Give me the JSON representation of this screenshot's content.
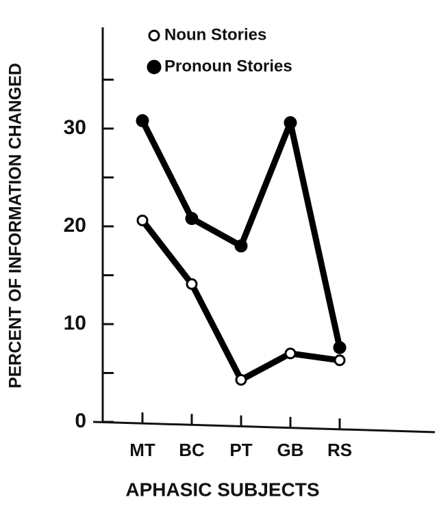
{
  "chart_data": {
    "type": "line",
    "xlabel": "APHASIC SUBJECTS",
    "ylabel": "PERCENT OF INFORMATION CHANGED",
    "categories": [
      "MT",
      "BC",
      "PT",
      "GB",
      "RS"
    ],
    "series": [
      {
        "name": "Noun Stories",
        "color": "#000000",
        "marker": "open",
        "values": [
          20.6,
          14.1,
          4.3,
          7.0,
          6.3
        ]
      },
      {
        "name": "Pronoun Stories",
        "color": "#000000",
        "marker": "filled",
        "values": [
          30.8,
          20.8,
          18.0,
          30.6,
          7.6
        ]
      }
    ],
    "ylim": [
      0,
      40
    ],
    "yticks": [
      0,
      10,
      20,
      30
    ],
    "minor_yticks": [
      5,
      15,
      25,
      35
    ],
    "grid": false,
    "legend": "upper left"
  }
}
